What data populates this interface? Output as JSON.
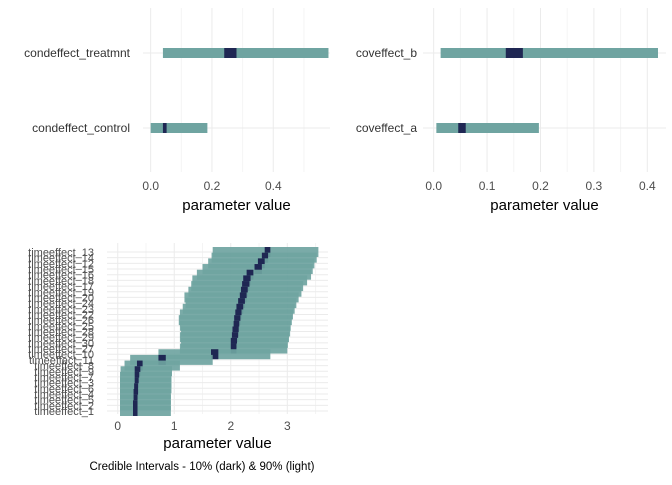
{
  "colors": {
    "outer": "#6fa4a1",
    "inner": "#1f2753"
  },
  "caption": "Credible Intervals - 10% (dark) & 90% (light)",
  "chart_data": [
    {
      "type": "interval",
      "xlabel": "parameter value",
      "xlim": [
        -0.025,
        0.585
      ],
      "xticks": [
        0.0,
        0.2,
        0.4
      ],
      "xtick_labels": [
        "0.0",
        "0.2",
        "0.4"
      ],
      "intervals": [
        {
          "label": "condeffect_treatmnt",
          "outer": [
            0.04,
            0.58
          ],
          "inner": [
            0.24,
            0.28
          ]
        },
        {
          "label": "condeffect_control",
          "outer": [
            0.0,
            0.185
          ],
          "inner": [
            0.04,
            0.052
          ]
        }
      ]
    },
    {
      "type": "interval",
      "xlabel": "parameter value",
      "xlim": [
        -0.02,
        0.435
      ],
      "xticks": [
        0.0,
        0.1,
        0.2,
        0.3,
        0.4
      ],
      "xtick_labels": [
        "0.0",
        "0.1",
        "0.2",
        "0.3",
        "0.4"
      ],
      "intervals": [
        {
          "label": "coveffect_b",
          "outer": [
            0.013,
            0.42
          ],
          "inner": [
            0.135,
            0.167
          ]
        },
        {
          "label": "coveffect_a",
          "outer": [
            0.005,
            0.197
          ],
          "inner": [
            0.046,
            0.06
          ]
        }
      ]
    },
    {
      "type": "interval",
      "xlabel": "parameter value",
      "xlim": [
        -0.19,
        3.72
      ],
      "xticks": [
        0,
        1,
        2,
        3
      ],
      "xtick_labels": [
        "0",
        "1",
        "2",
        "3"
      ],
      "intervals": [
        {
          "label": "timeeffect_13",
          "outer": [
            1.68,
            3.55
          ],
          "inner": [
            2.6,
            2.7
          ]
        },
        {
          "label": "timeeffect_14",
          "outer": [
            1.66,
            3.52
          ],
          "inner": [
            2.55,
            2.66
          ]
        },
        {
          "label": "timeeffect_12",
          "outer": [
            1.6,
            3.48
          ],
          "inner": [
            2.48,
            2.6
          ]
        },
        {
          "label": "timeeffect_15",
          "outer": [
            1.5,
            3.45
          ],
          "inner": [
            2.42,
            2.55
          ]
        },
        {
          "label": "timeeffect_16",
          "outer": [
            1.4,
            3.42
          ],
          "inner": [
            2.28,
            2.4
          ]
        },
        {
          "label": "timeeffect_18",
          "outer": [
            1.32,
            3.35
          ],
          "inner": [
            2.22,
            2.35
          ]
        },
        {
          "label": "timeeffect_17",
          "outer": [
            1.3,
            3.28
          ],
          "inner": [
            2.2,
            2.33
          ]
        },
        {
          "label": "timeeffect_19",
          "outer": [
            1.25,
            3.25
          ],
          "inner": [
            2.18,
            2.3
          ]
        },
        {
          "label": "timeeffect_20",
          "outer": [
            1.18,
            3.2
          ],
          "inner": [
            2.16,
            2.28
          ]
        },
        {
          "label": "timeeffect_24",
          "outer": [
            1.2,
            3.16
          ],
          "inner": [
            2.13,
            2.25
          ]
        },
        {
          "label": "timeeffect_23",
          "outer": [
            1.15,
            3.13
          ],
          "inner": [
            2.1,
            2.22
          ]
        },
        {
          "label": "timeeffect_22",
          "outer": [
            1.1,
            3.1
          ],
          "inner": [
            2.08,
            2.19
          ]
        },
        {
          "label": "timeeffect_26",
          "outer": [
            1.08,
            3.08
          ],
          "inner": [
            2.06,
            2.17
          ]
        },
        {
          "label": "timeeffect_25",
          "outer": [
            1.1,
            3.06
          ],
          "inner": [
            2.05,
            2.15
          ]
        },
        {
          "label": "timeeffect_28",
          "outer": [
            1.12,
            3.05
          ],
          "inner": [
            2.03,
            2.14
          ]
        },
        {
          "label": "timeeffect_29",
          "outer": [
            1.1,
            3.03
          ],
          "inner": [
            2.02,
            2.13
          ]
        },
        {
          "label": "timeeffect_30",
          "outer": [
            1.12,
            3.01
          ],
          "inner": [
            2.0,
            2.11
          ]
        },
        {
          "label": "timeeffect_27",
          "outer": [
            1.1,
            3.0
          ],
          "inner": [
            2.0,
            2.1
          ]
        },
        {
          "label": "timeeffect_10",
          "outer": [
            0.72,
            2.7
          ],
          "inner": [
            1.65,
            1.78
          ]
        },
        {
          "label": "timeeffect_11",
          "outer": [
            0.22,
            1.68
          ],
          "inner": [
            0.72,
            0.85
          ]
        },
        {
          "label": "timeeffect_8",
          "outer": [
            0.12,
            1.1
          ],
          "inner": [
            0.34,
            0.44
          ]
        },
        {
          "label": "timeeffect_9",
          "outer": [
            0.05,
            0.96
          ],
          "inner": [
            0.3,
            0.4
          ]
        },
        {
          "label": "timeeffect_7",
          "outer": [
            0.04,
            0.95
          ],
          "inner": [
            0.3,
            0.38
          ]
        },
        {
          "label": "timeeffect_3",
          "outer": [
            0.04,
            0.95
          ],
          "inner": [
            0.3,
            0.37
          ]
        },
        {
          "label": "timeeffect_6",
          "outer": [
            0.04,
            0.95
          ],
          "inner": [
            0.29,
            0.36
          ]
        },
        {
          "label": "timeeffect_4",
          "outer": [
            0.04,
            0.94
          ],
          "inner": [
            0.28,
            0.36
          ]
        },
        {
          "label": "timeeffect_5",
          "outer": [
            0.04,
            0.94
          ],
          "inner": [
            0.28,
            0.35
          ]
        },
        {
          "label": "timeeffect_2",
          "outer": [
            0.04,
            0.94
          ],
          "inner": [
            0.27,
            0.35
          ]
        },
        {
          "label": "timeeffect_1",
          "outer": [
            0.04,
            0.94
          ],
          "inner": [
            0.27,
            0.35
          ]
        }
      ]
    }
  ]
}
